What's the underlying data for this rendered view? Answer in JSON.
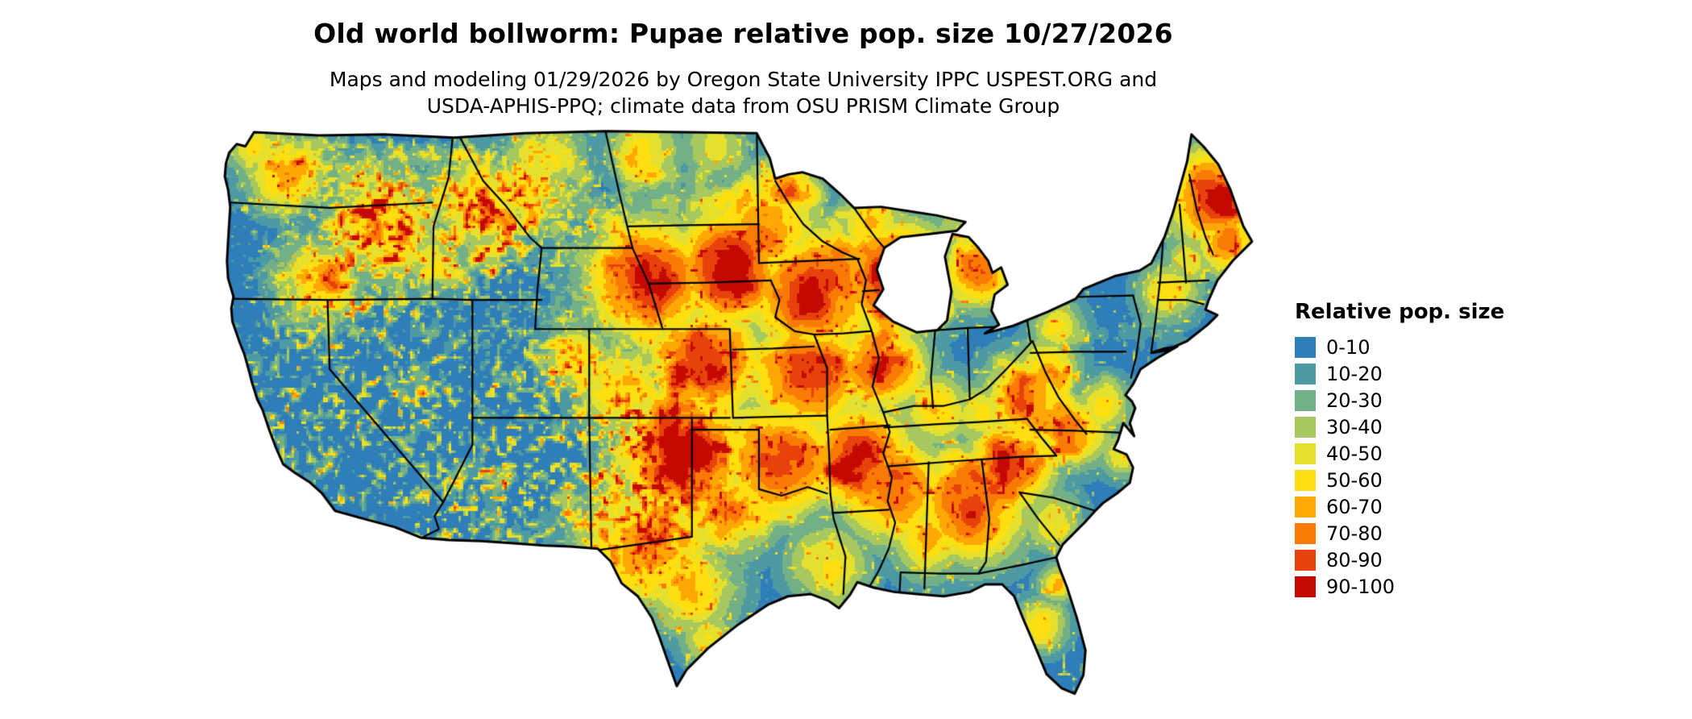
{
  "title": "Old world bollworm: Pupae relative pop. size 10/27/2026",
  "subtitle": {
    "line1": "Maps and modeling 01/29/2026 by Oregon State University IPPC USPEST.ORG and",
    "line2": "USDA-APHIS-PPQ; climate data from OSU PRISM Climate Group"
  },
  "legend": {
    "title": "Relative pop. size",
    "entries": [
      {
        "label": "0-10",
        "color": "#2f7eb8"
      },
      {
        "label": "10-20",
        "color": "#4d9aa4"
      },
      {
        "label": "20-30",
        "color": "#74b087"
      },
      {
        "label": "30-40",
        "color": "#a6c85f"
      },
      {
        "label": "40-50",
        "color": "#e3e02f"
      },
      {
        "label": "50-60",
        "color": "#ffdf0f"
      },
      {
        "label": "60-70",
        "color": "#ffa705"
      },
      {
        "label": "70-80",
        "color": "#f97b06"
      },
      {
        "label": "80-90",
        "color": "#e8420c"
      },
      {
        "label": "90-100",
        "color": "#c40a00"
      }
    ]
  },
  "map": {
    "region": "Conterminous United States",
    "outline_color": "#000000",
    "background_color": "#ffffff"
  }
}
